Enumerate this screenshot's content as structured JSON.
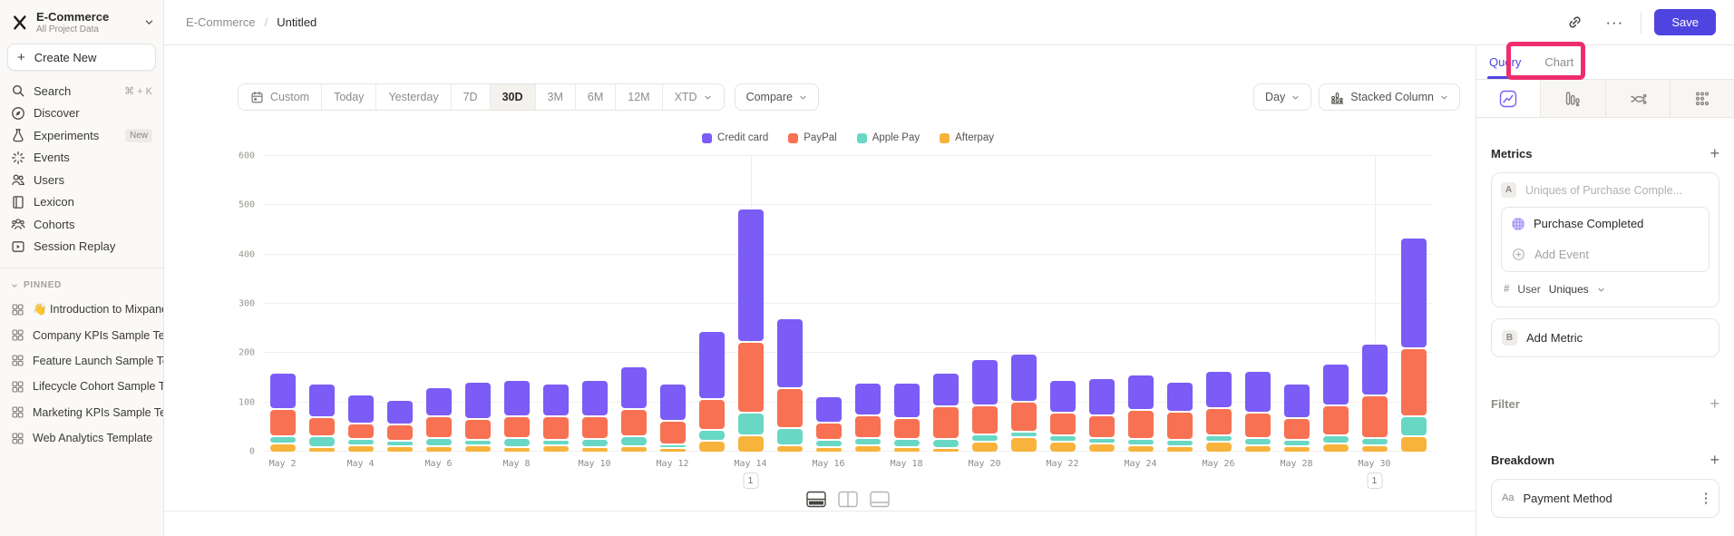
{
  "sidebar": {
    "project": {
      "name": "E-Commerce",
      "subtitle": "All Project Data"
    },
    "create_new_label": "Create New",
    "nav": [
      {
        "label": "Search",
        "icon": "search-icon",
        "shortcut": "⌘ + K"
      },
      {
        "label": "Discover",
        "icon": "compass-icon"
      },
      {
        "label": "Experiments",
        "icon": "flask-icon",
        "badge": "New"
      },
      {
        "label": "Events",
        "icon": "spark-icon"
      },
      {
        "label": "Users",
        "icon": "users-icon"
      },
      {
        "label": "Lexicon",
        "icon": "book-icon"
      },
      {
        "label": "Cohorts",
        "icon": "cohorts-icon"
      },
      {
        "label": "Session Replay",
        "icon": "replay-icon"
      }
    ],
    "pinned_header": "PINNED",
    "pinned": [
      "👋 Introduction to Mixpanel Board",
      "Company KPIs Sample Template",
      "Feature Launch Sample Template",
      "Lifecycle Cohort Sample Template",
      "Marketing KPIs Sample Template",
      "Web Analytics Template"
    ]
  },
  "topbar": {
    "breadcrumb": {
      "project": "E-Commerce",
      "separator": "/",
      "current": "Untitled"
    },
    "more_label": "···",
    "save_label": "Save"
  },
  "toolbar": {
    "ranges": [
      "Custom",
      "Today",
      "Yesterday",
      "7D",
      "30D",
      "3M",
      "6M",
      "12M",
      "XTD"
    ],
    "active_range": "30D",
    "compare_label": "Compare",
    "granularity_label": "Day",
    "chart_type_label": "Stacked Column"
  },
  "panel": {
    "tabs": {
      "query": "Query",
      "chart": "Chart"
    },
    "icon_tabs": [
      "insights-icon",
      "funnels-icon",
      "flows-icon",
      "retention-icon"
    ],
    "metrics": {
      "header": "Metrics",
      "add_symbol": "+",
      "slot_a_label": "A",
      "slot_a_text": "Uniques of Purchase Comple...",
      "event_name": "Purchase Completed",
      "add_event_label": "Add Event",
      "count_prefix": "#",
      "count_entity": "User",
      "count_type": "Uniques",
      "slot_b_label": "B",
      "add_metric_label": "Add Metric"
    },
    "filter_header": "Filter",
    "breakdown_header": "Breakdown",
    "breakdown_item": {
      "badge": "Aa",
      "label": "Payment Method"
    }
  },
  "footer": {
    "layout_options": [
      "split-horizontal",
      "split-vertical",
      "panel-bottom"
    ],
    "active": "split-horizontal"
  },
  "annotation_overlay": {
    "highlight_color": "#ee2d6c",
    "target": "Chart"
  },
  "chart_data": {
    "type": "bar",
    "stacked": true,
    "x": [
      "May 2",
      "May 3",
      "May 4",
      "May 5",
      "May 6",
      "May 7",
      "May 8",
      "May 9",
      "May 10",
      "May 11",
      "May 12",
      "May 13",
      "May 14",
      "May 15",
      "May 16",
      "May 17",
      "May 18",
      "May 19",
      "May 20",
      "May 21",
      "May 22",
      "May 23",
      "May 24",
      "May 25",
      "May 26",
      "May 27",
      "May 28",
      "May 29",
      "May 30",
      "May 31"
    ],
    "x_tick_labels": [
      "May 2",
      "May 4",
      "May 6",
      "May 8",
      "May 10",
      "May 12",
      "May 14",
      "May 16",
      "May 18",
      "May 20",
      "May 22",
      "May 24",
      "May 26",
      "May 28",
      "May 30"
    ],
    "series": [
      {
        "name": "Credit card",
        "color": "#7b5cf6",
        "values": [
          70,
          64,
          55,
          46,
          56,
          72,
          71,
          63,
          71,
          83,
          71,
          133,
          267,
          138,
          50,
          63,
          68,
          66,
          91,
          95,
          63,
          72,
          69,
          57,
          71,
          81,
          65,
          81,
          101,
          221
        ]
      },
      {
        "name": "PayPal",
        "color": "#f87152",
        "values": [
          53,
          35,
          28,
          30,
          40,
          39,
          40,
          44,
          42,
          52,
          44,
          60,
          139,
          78,
          32,
          43,
          40,
          62,
          54,
          56,
          42,
          42,
          55,
          54,
          52,
          48,
          42,
          58,
          83,
          133
        ]
      },
      {
        "name": "Apple Pay",
        "color": "#68d8c4",
        "values": [
          10,
          18,
          8,
          6,
          12,
          6,
          14,
          6,
          12,
          15,
          5,
          18,
          42,
          30,
          10,
          10,
          12,
          14,
          12,
          8,
          10,
          8,
          8,
          8,
          10,
          10,
          8,
          12,
          10,
          37
        ]
      },
      {
        "name": "Afterpay",
        "color": "#f8b33c",
        "values": [
          15,
          8,
          12,
          10,
          10,
          12,
          8,
          12,
          8,
          10,
          5,
          20,
          32,
          12,
          8,
          12,
          8,
          6,
          18,
          28,
          18,
          15,
          12,
          10,
          18,
          12,
          10,
          15,
          12,
          30
        ]
      }
    ],
    "stack_order_bottom_to_top": [
      "Afterpay",
      "Apple Pay",
      "PayPal",
      "Credit card"
    ],
    "ylim": [
      0,
      600
    ],
    "yticks": [
      0,
      100,
      200,
      300,
      400,
      500,
      600
    ],
    "annotations": [
      {
        "x": "May 14",
        "label": "1"
      },
      {
        "x": "May 30",
        "label": "1"
      }
    ],
    "legend_position": "top",
    "grid": "horizontal"
  }
}
